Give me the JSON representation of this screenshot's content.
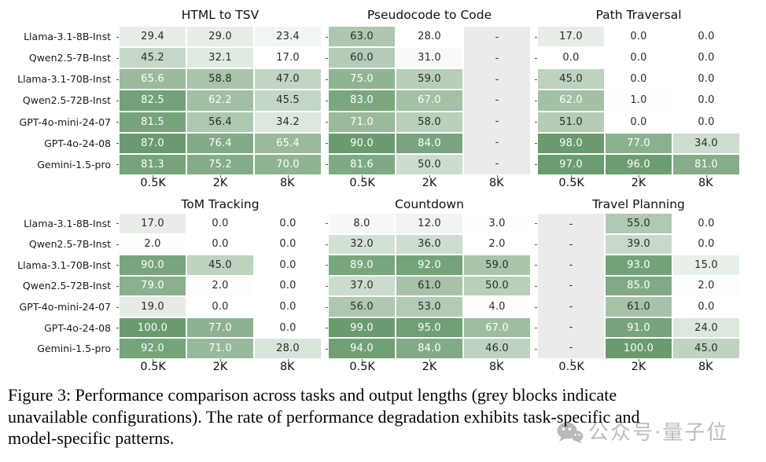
{
  "figure": {
    "row_labels": [
      "Llama-3.1-8B-Inst",
      "Qwen2.5-7B-Inst",
      "Llama-3.1-70B-Inst",
      "Qwen2.5-72B-Inst",
      "GPT-4o-mini-24-07",
      "GPT-4o-24-08",
      "Gemini-1.5-pro"
    ],
    "col_labels": [
      "0.5K",
      "2K",
      "8K"
    ],
    "unavailable_symbol": "-",
    "colors": {
      "heat_low": "#ffffff",
      "heat_mid": "#b7ceb9",
      "heat_high": "#699b6e",
      "unavailable_bg": "#ebebeb",
      "annot_dark": "#2b2b2b",
      "annot_light": "#ffffff"
    }
  },
  "chart_data": [
    {
      "type": "heatmap",
      "title": "HTML to TSV",
      "rows": [
        "Llama-3.1-8B-Inst",
        "Qwen2.5-7B-Inst",
        "Llama-3.1-70B-Inst",
        "Qwen2.5-72B-Inst",
        "GPT-4o-mini-24-07",
        "GPT-4o-24-08",
        "Gemini-1.5-pro"
      ],
      "columns": [
        "0.5K",
        "2K",
        "8K"
      ],
      "values": [
        [
          29.4,
          29.0,
          23.4
        ],
        [
          45.2,
          32.1,
          17.0
        ],
        [
          65.6,
          58.8,
          47.0
        ],
        [
          82.5,
          62.2,
          45.5
        ],
        [
          81.5,
          56.4,
          34.2
        ],
        [
          87.0,
          76.4,
          65.4
        ],
        [
          81.3,
          75.2,
          70.0
        ]
      ]
    },
    {
      "type": "heatmap",
      "title": "Pseudocode to Code",
      "rows": [
        "Llama-3.1-8B-Inst",
        "Qwen2.5-7B-Inst",
        "Llama-3.1-70B-Inst",
        "Qwen2.5-72B-Inst",
        "GPT-4o-mini-24-07",
        "GPT-4o-24-08",
        "Gemini-1.5-pro"
      ],
      "columns": [
        "0.5K",
        "2K",
        "8K"
      ],
      "values": [
        [
          63.0,
          28.0,
          null
        ],
        [
          60.0,
          31.0,
          null
        ],
        [
          75.0,
          59.0,
          null
        ],
        [
          83.0,
          67.0,
          null
        ],
        [
          71.0,
          58.0,
          null
        ],
        [
          90.0,
          84.0,
          null
        ],
        [
          81.6,
          50.0,
          null
        ]
      ]
    },
    {
      "type": "heatmap",
      "title": "Path Traversal",
      "rows": [
        "Llama-3.1-8B-Inst",
        "Qwen2.5-7B-Inst",
        "Llama-3.1-70B-Inst",
        "Qwen2.5-72B-Inst",
        "GPT-4o-mini-24-07",
        "GPT-4o-24-08",
        "Gemini-1.5-pro"
      ],
      "columns": [
        "0.5K",
        "2K",
        "8K"
      ],
      "values": [
        [
          17.0,
          0.0,
          0.0
        ],
        [
          0.0,
          0.0,
          0.0
        ],
        [
          45.0,
          0.0,
          0.0
        ],
        [
          62.0,
          1.0,
          0.0
        ],
        [
          51.0,
          0.0,
          0.0
        ],
        [
          98.0,
          77.0,
          34.0
        ],
        [
          97.0,
          96.0,
          81.0
        ]
      ]
    },
    {
      "type": "heatmap",
      "title": "ToM Tracking",
      "rows": [
        "Llama-3.1-8B-Inst",
        "Qwen2.5-7B-Inst",
        "Llama-3.1-70B-Inst",
        "Qwen2.5-72B-Inst",
        "GPT-4o-mini-24-07",
        "GPT-4o-24-08",
        "Gemini-1.5-pro"
      ],
      "columns": [
        "0.5K",
        "2K",
        "8K"
      ],
      "values": [
        [
          17.0,
          0.0,
          0.0
        ],
        [
          2.0,
          0.0,
          0.0
        ],
        [
          90.0,
          45.0,
          0.0
        ],
        [
          79.0,
          2.0,
          0.0
        ],
        [
          19.0,
          0.0,
          0.0
        ],
        [
          100.0,
          77.0,
          0.0
        ],
        [
          92.0,
          71.0,
          28.0
        ]
      ]
    },
    {
      "type": "heatmap",
      "title": "Countdown",
      "rows": [
        "Llama-3.1-8B-Inst",
        "Qwen2.5-7B-Inst",
        "Llama-3.1-70B-Inst",
        "Qwen2.5-72B-Inst",
        "GPT-4o-mini-24-07",
        "GPT-4o-24-08",
        "Gemini-1.5-pro"
      ],
      "columns": [
        "0.5K",
        "2K",
        "8K"
      ],
      "values": [
        [
          8.0,
          12.0,
          3.0
        ],
        [
          32.0,
          36.0,
          2.0
        ],
        [
          89.0,
          92.0,
          59.0
        ],
        [
          37.0,
          61.0,
          50.0
        ],
        [
          56.0,
          53.0,
          4.0
        ],
        [
          99.0,
          95.0,
          67.0
        ],
        [
          94.0,
          84.0,
          46.0
        ]
      ]
    },
    {
      "type": "heatmap",
      "title": "Travel Planning",
      "rows": [
        "Llama-3.1-8B-Inst",
        "Qwen2.5-7B-Inst",
        "Llama-3.1-70B-Inst",
        "Qwen2.5-72B-Inst",
        "GPT-4o-mini-24-07",
        "GPT-4o-24-08",
        "Gemini-1.5-pro"
      ],
      "columns": [
        "0.5K",
        "2K",
        "8K"
      ],
      "values": [
        [
          null,
          55.0,
          0.0
        ],
        [
          null,
          39.0,
          0.0
        ],
        [
          null,
          93.0,
          15.0
        ],
        [
          null,
          85.0,
          2.0
        ],
        [
          null,
          61.0,
          0.0
        ],
        [
          null,
          91.0,
          24.0
        ],
        [
          null,
          100.0,
          45.0
        ]
      ]
    }
  ],
  "caption": {
    "lines": [
      "Figure 3: Performance comparison across tasks and output lengths (grey blocks indicate",
      "unavailable configurations). The rate of performance degradation exhibits task-specific and",
      "model-specific patterns."
    ]
  },
  "watermark": {
    "text": "公众号·量子位"
  }
}
